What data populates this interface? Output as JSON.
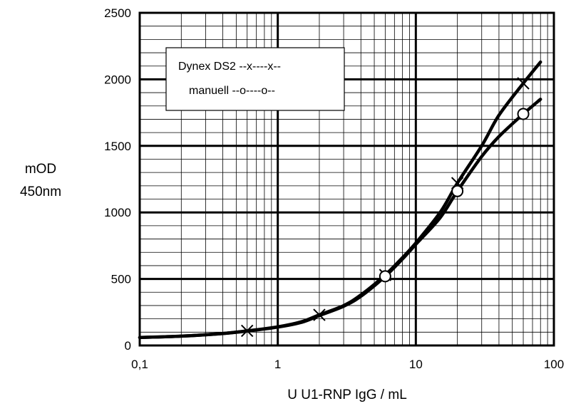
{
  "chart_data": {
    "type": "line",
    "xscale": "log",
    "xlim": [
      0.1,
      100
    ],
    "ylim": [
      0,
      2500
    ],
    "xticks": [
      0.1,
      1,
      10,
      100
    ],
    "xtick_labels": [
      "0,1",
      "1",
      "10",
      "100"
    ],
    "yticks": [
      0,
      500,
      1000,
      1500,
      2000,
      2500
    ],
    "ytick_labels": [
      "0",
      "500",
      "1000",
      "1500",
      "2000",
      "2500"
    ],
    "xlabel": "U U1-RNP IgG / mL",
    "ylabel": [
      "mOD",
      "450nm"
    ],
    "grid": true,
    "legend_position": "top-left",
    "series": [
      {
        "name": "Dynex DS2 --x----x--",
        "marker": "x",
        "markers_at": [
          {
            "x": 0.6,
            "y": 110
          },
          {
            "x": 2,
            "y": 230
          },
          {
            "x": 6,
            "y": 530
          },
          {
            "x": 20,
            "y": 1220
          },
          {
            "x": 60,
            "y": 1970
          }
        ],
        "curve": [
          {
            "x": 0.1,
            "y": 60
          },
          {
            "x": 0.2,
            "y": 70
          },
          {
            "x": 0.4,
            "y": 90
          },
          {
            "x": 0.6,
            "y": 110
          },
          {
            "x": 1,
            "y": 140
          },
          {
            "x": 1.5,
            "y": 180
          },
          {
            "x": 2,
            "y": 230
          },
          {
            "x": 3,
            "y": 300
          },
          {
            "x": 4,
            "y": 380
          },
          {
            "x": 6,
            "y": 530
          },
          {
            "x": 8,
            "y": 660
          },
          {
            "x": 10,
            "y": 770
          },
          {
            "x": 15,
            "y": 1000
          },
          {
            "x": 20,
            "y": 1220
          },
          {
            "x": 30,
            "y": 1500
          },
          {
            "x": 40,
            "y": 1730
          },
          {
            "x": 60,
            "y": 1970
          },
          {
            "x": 80,
            "y": 2130
          }
        ]
      },
      {
        "name": "manuell --o----o--",
        "marker": "o",
        "markers_at": [
          {
            "x": 6,
            "y": 520
          },
          {
            "x": 20,
            "y": 1160
          },
          {
            "x": 60,
            "y": 1740
          }
        ],
        "curve": [
          {
            "x": 0.1,
            "y": 60
          },
          {
            "x": 0.2,
            "y": 70
          },
          {
            "x": 0.4,
            "y": 90
          },
          {
            "x": 0.6,
            "y": 108
          },
          {
            "x": 1,
            "y": 138
          },
          {
            "x": 1.5,
            "y": 175
          },
          {
            "x": 2,
            "y": 225
          },
          {
            "x": 3,
            "y": 295
          },
          {
            "x": 4,
            "y": 370
          },
          {
            "x": 6,
            "y": 520
          },
          {
            "x": 8,
            "y": 650
          },
          {
            "x": 10,
            "y": 760
          },
          {
            "x": 15,
            "y": 960
          },
          {
            "x": 20,
            "y": 1160
          },
          {
            "x": 30,
            "y": 1420
          },
          {
            "x": 40,
            "y": 1570
          },
          {
            "x": 60,
            "y": 1740
          },
          {
            "x": 80,
            "y": 1850
          }
        ]
      }
    ]
  }
}
